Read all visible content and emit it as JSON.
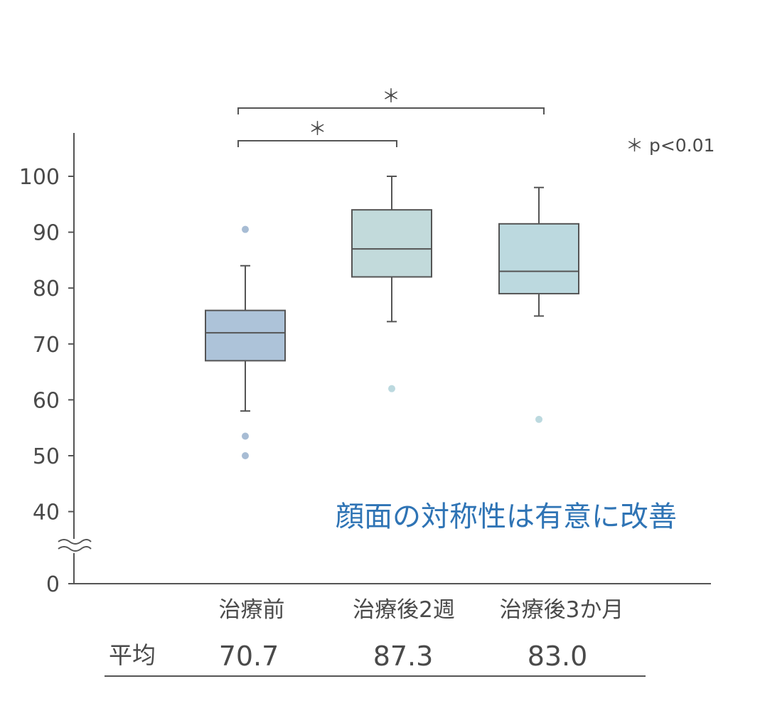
{
  "chart_data": {
    "type": "box",
    "categories": [
      "治療前",
      "治療後2週",
      "治療後3か月"
    ],
    "series": [
      {
        "category": "治療前",
        "whisker_low": 58,
        "q1": 67,
        "median": 72,
        "q3": 76,
        "whisker_high": 84,
        "outliers": [
          90.5,
          53.5,
          50
        ],
        "color": "#adc3d9"
      },
      {
        "category": "治療後2週",
        "whisker_low": 74,
        "q1": 82,
        "median": 87,
        "q3": 94,
        "whisker_high": 100,
        "outliers": [
          62
        ],
        "color": "#c2dadb"
      },
      {
        "category": "治療後3か月",
        "whisker_low": 75,
        "q1": 79,
        "median": 83,
        "q3": 91.5,
        "whisker_high": 98,
        "outliers": [
          56.5
        ],
        "color": "#bcd9df"
      }
    ],
    "yticks": [
      "0",
      "40",
      "50",
      "60",
      "70",
      "80",
      "90",
      "100"
    ],
    "ylim": [
      40,
      107
    ],
    "axis_break": true,
    "significance": [
      {
        "from": 0,
        "to": 2,
        "label": "＊"
      },
      {
        "from": 0,
        "to": 1,
        "label": "＊"
      }
    ],
    "significance_note": "＊  p<0.01",
    "headline": "顔面の対称性は有意に改善",
    "mean_row": {
      "label": "平均",
      "values": [
        "70.7",
        "87.3",
        "83.0"
      ]
    },
    "outlier_colors": [
      "#a7bcd4",
      "#bcd9df"
    ]
  }
}
